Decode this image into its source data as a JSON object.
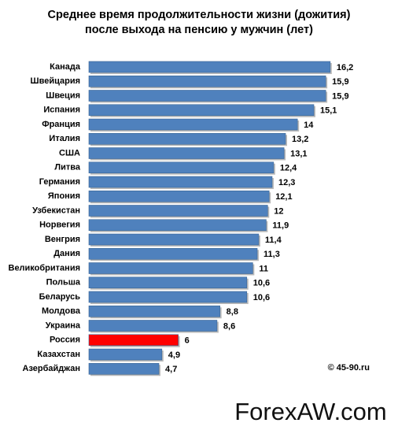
{
  "chart_data": {
    "type": "bar",
    "orientation": "horizontal",
    "title": [
      "Среднее время продолжительности жизни (дожития)",
      "после выхода на пенсию у мужчин (лет)"
    ],
    "categories": [
      "Канада",
      "Швейцария",
      "Швеция",
      "Испания",
      "Франция",
      "Италия",
      "США",
      "Литва",
      "Германия",
      "Япония",
      "Узбекистан",
      "Норвегия",
      "Венгрия",
      "Дания",
      "Великобритания",
      "Польша",
      "Беларусь",
      "Молдова",
      "Украина",
      "Россия",
      "Казахстан",
      "Азербайджан"
    ],
    "values": [
      16.2,
      15.9,
      15.9,
      15.1,
      14,
      13.2,
      13.1,
      12.4,
      12.3,
      12.1,
      12,
      11.9,
      11.4,
      11.3,
      11,
      10.6,
      10.6,
      8.8,
      8.6,
      6,
      4.9,
      4.7
    ],
    "value_labels": [
      "16,2",
      "15,9",
      "15,9",
      "15,1",
      "14",
      "13,2",
      "13,1",
      "12,4",
      "12,3",
      "12,1",
      "12",
      "11,9",
      "11,4",
      "11,3",
      "11",
      "10,6",
      "10,6",
      "8,8",
      "8,6",
      "6",
      "4,9",
      "4,7"
    ],
    "colors": [
      "#4f81bd",
      "#4f81bd",
      "#4f81bd",
      "#4f81bd",
      "#4f81bd",
      "#4f81bd",
      "#4f81bd",
      "#4f81bd",
      "#4f81bd",
      "#4f81bd",
      "#4f81bd",
      "#4f81bd",
      "#4f81bd",
      "#4f81bd",
      "#4f81bd",
      "#4f81bd",
      "#4f81bd",
      "#4f81bd",
      "#4f81bd",
      "#ff0000",
      "#4f81bd",
      "#4f81bd"
    ],
    "xlim": [
      0,
      17
    ],
    "annotations": [
      "© 45-90.ru",
      "ForexAW.com"
    ]
  }
}
